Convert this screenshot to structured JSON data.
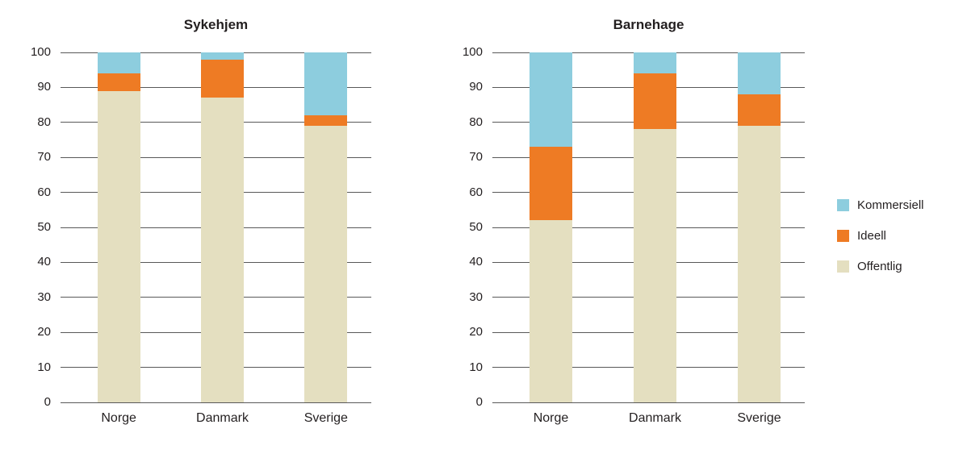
{
  "figure": {
    "description": "Two stacked 100% bar charts comparing ownership shares",
    "titles": [
      "Sykehjem",
      "Barnehage"
    ]
  },
  "colors": {
    "kommersiell": "#8DCDDE",
    "ideell": "#EE7B24",
    "offentlig": "#E4DFC0",
    "gridline": "#595959",
    "text": "#231F20",
    "background": "#FFFFFF"
  },
  "legend": {
    "position": "right",
    "items": [
      {
        "key": "kommersiell",
        "label": "Kommersiell"
      },
      {
        "key": "ideell",
        "label": "Ideell"
      },
      {
        "key": "offentlig",
        "label": "Offentlig"
      }
    ]
  },
  "chart_data": [
    {
      "type": "bar",
      "stacked": true,
      "title": "Sykehjem",
      "categories": [
        "Norge",
        "Danmark",
        "Sverige"
      ],
      "series": [
        {
          "name": "Offentlig",
          "key": "offentlig",
          "values": [
            89,
            87,
            79
          ]
        },
        {
          "name": "Ideell",
          "key": "ideell",
          "values": [
            5,
            11,
            3
          ]
        },
        {
          "name": "Kommersiell",
          "key": "kommersiell",
          "values": [
            6,
            2,
            18
          ]
        }
      ],
      "xlabel": "",
      "ylabel": "",
      "ylim": [
        0,
        100
      ],
      "yticks": [
        0,
        10,
        20,
        30,
        40,
        50,
        60,
        70,
        80,
        90,
        100
      ],
      "grid": true
    },
    {
      "type": "bar",
      "stacked": true,
      "title": "Barnehage",
      "categories": [
        "Norge",
        "Danmark",
        "Sverige"
      ],
      "series": [
        {
          "name": "Offentlig",
          "key": "offentlig",
          "values": [
            52,
            78,
            79
          ]
        },
        {
          "name": "Ideell",
          "key": "ideell",
          "values": [
            21,
            16,
            9
          ]
        },
        {
          "name": "Kommersiell",
          "key": "kommersiell",
          "values": [
            27,
            6,
            12
          ]
        }
      ],
      "xlabel": "",
      "ylabel": "",
      "ylim": [
        0,
        100
      ],
      "yticks": [
        0,
        10,
        20,
        30,
        40,
        50,
        60,
        70,
        80,
        90,
        100
      ],
      "grid": true
    }
  ]
}
